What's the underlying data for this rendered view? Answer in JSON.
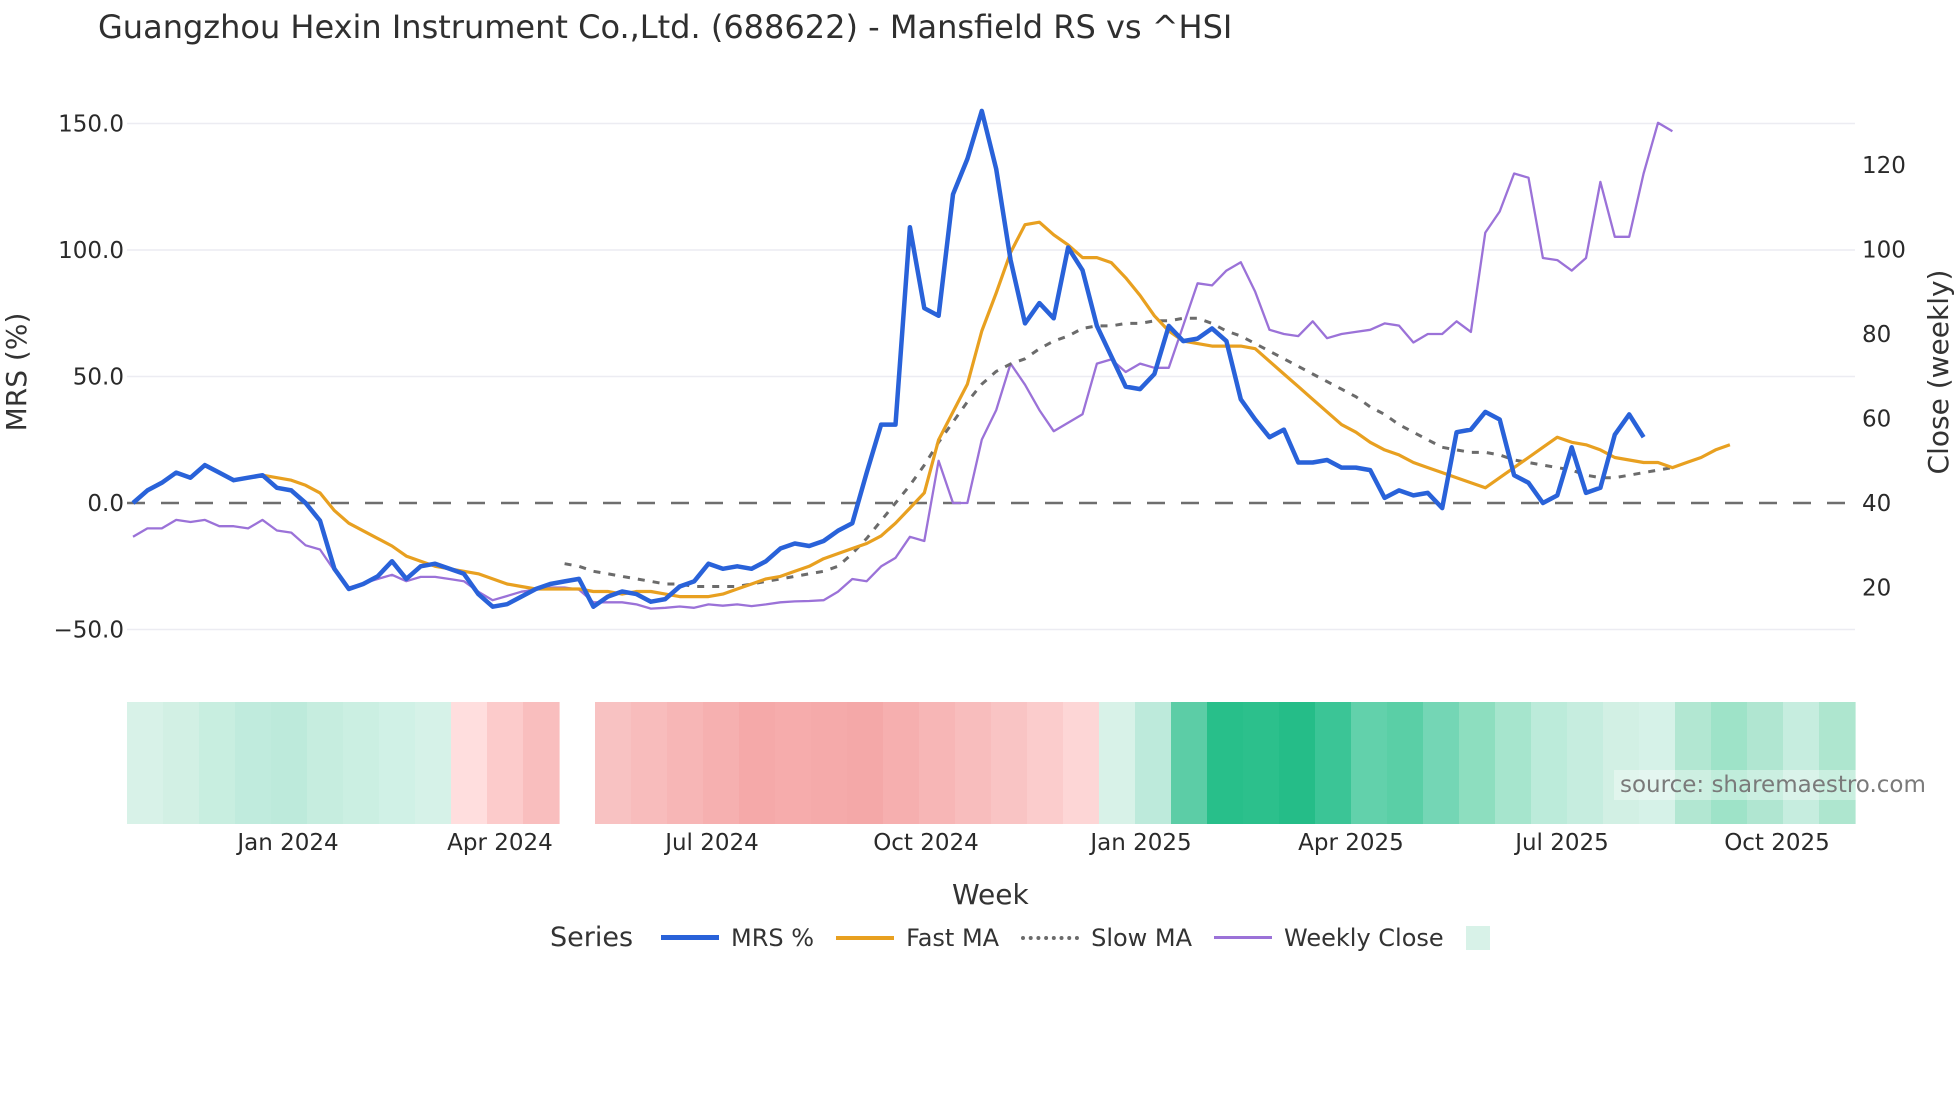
{
  "title": "Guangzhou Hexin Instrument Co.,Ltd. (688622) - Mansfield RS vs ^HSI",
  "source_note": "source: sharemaestro.com",
  "x_axis_title": "Week",
  "legend": {
    "title": "Series",
    "items": [
      {
        "label": "MRS %",
        "color": "#2962d9",
        "style": "solid"
      },
      {
        "label": "Fast MA",
        "color": "#e8a020",
        "style": "solid"
      },
      {
        "label": "Slow MA",
        "color": "#6b6b6b",
        "style": "dotted"
      },
      {
        "label": "Weekly Close",
        "color": "#9b72d8",
        "style": "solid"
      },
      {
        "label": "",
        "color": "#d8f2e8",
        "style": "square"
      }
    ]
  },
  "chart_data": {
    "type": "line",
    "title": "Guangzhou Hexin Instrument Co.,Ltd. (688622) - Mansfield RS vs ^HSI",
    "xlabel": "Week",
    "ylabel": "MRS (%)",
    "y2label": "Close (weekly)",
    "ylim": [
      -60,
      160
    ],
    "y2lim": [
      10,
      140
    ],
    "yticks": [
      "150.0",
      "100.0",
      "50.0",
      "0.0",
      "−50.0"
    ],
    "y2ticks": [
      "120",
      "100",
      "80",
      "60",
      "40",
      "20"
    ],
    "xticks": [
      "Jan 2024",
      "Apr 2024",
      "Jul 2024",
      "Oct 2024",
      "Jan 2025",
      "Apr 2025",
      "Jul 2025",
      "Oct 2025"
    ],
    "grid": true,
    "zero_line": "dashed",
    "legend_position": "bottom",
    "x_start_week": 0,
    "x_end_week": 119,
    "series": [
      {
        "name": "MRS %",
        "axis": "left",
        "start_index": 0,
        "values": [
          0,
          5,
          8,
          12,
          10,
          15,
          12,
          9,
          10,
          11,
          6,
          5,
          0,
          -7,
          -26,
          -34,
          -32,
          -29,
          -23,
          -30,
          -25,
          -24,
          -26,
          -28,
          -36,
          -41,
          -40,
          -37,
          -34,
          -32,
          -31,
          -30,
          -41,
          -37,
          -35,
          -36,
          -39,
          -38,
          -33,
          -31,
          -24,
          -26,
          -25,
          -26,
          -23,
          -18,
          -16,
          -17,
          -15,
          -11,
          -8,
          12,
          31,
          31,
          109,
          77,
          74,
          122,
          136,
          155,
          132,
          96,
          71,
          79,
          73,
          101,
          92,
          70,
          58,
          46,
          45,
          51,
          70,
          64,
          65,
          69,
          64,
          41,
          33,
          26,
          29,
          16,
          16,
          17,
          14,
          14,
          13,
          2,
          5,
          3,
          4,
          -2,
          28,
          29,
          36,
          33,
          11,
          8,
          0,
          3,
          22,
          4,
          6,
          27,
          35,
          26
        ],
        "color": "#2962d9"
      },
      {
        "name": "Fast MA",
        "axis": "left",
        "start_index": 9,
        "values": [
          11,
          10,
          9,
          7,
          4,
          -3,
          -8,
          -11,
          -14,
          -17,
          -21,
          -23,
          -25,
          -26,
          -27,
          -28,
          -30,
          -32,
          -33,
          -34,
          -34,
          -34,
          -34,
          -35,
          -35,
          -36,
          -35,
          -35,
          -36,
          -37,
          -37,
          -37,
          -36,
          -34,
          -32,
          -30,
          -29,
          -27,
          -25,
          -22,
          -20,
          -18,
          -16,
          -13,
          -8,
          -2,
          4,
          25,
          36,
          47,
          68,
          83,
          99,
          110,
          111,
          106,
          102,
          97,
          97,
          95,
          89,
          82,
          74,
          68,
          64,
          63,
          62,
          62,
          62,
          61,
          56,
          51,
          46,
          41,
          36,
          31,
          28,
          24,
          21,
          19,
          16,
          14,
          12,
          10,
          8,
          6,
          10,
          14,
          18,
          22,
          26,
          24,
          23,
          21,
          18,
          17,
          16,
          16,
          14,
          16,
          18,
          21,
          23
        ],
        "color": "#e8a020"
      },
      {
        "name": "Slow MA",
        "axis": "left",
        "start_index": 30,
        "values": [
          -24,
          -25,
          -27,
          -28,
          -29,
          -30,
          -31,
          -32,
          -32,
          -33,
          -33,
          -33,
          -33,
          -32,
          -31,
          -30,
          -29,
          -28,
          -27,
          -25,
          -20,
          -14,
          -7,
          0,
          7,
          15,
          24,
          32,
          40,
          47,
          52,
          55,
          57,
          61,
          64,
          66,
          69,
          70,
          70,
          71,
          71,
          72,
          72,
          73,
          73,
          71,
          68,
          66,
          63,
          60,
          57,
          54,
          51,
          48,
          45,
          42,
          38,
          35,
          31,
          28,
          25,
          22,
          21,
          20,
          20,
          19,
          17,
          16,
          15,
          14,
          13,
          11,
          10,
          10,
          11,
          12,
          13,
          14
        ],
        "color": "#6b6b6b"
      },
      {
        "name": "Weekly Close",
        "axis": "right",
        "start_index": 0,
        "values": [
          32,
          34,
          34,
          36,
          35.5,
          36,
          34.5,
          34.5,
          34,
          36,
          33.5,
          33,
          30,
          29,
          24,
          20,
          21,
          22,
          23,
          21.5,
          22.5,
          22.5,
          22,
          21.5,
          19,
          17,
          18,
          19,
          19.5,
          20,
          20,
          19.5,
          16.5,
          16.5,
          16.5,
          16,
          15,
          15.2,
          15.5,
          15.2,
          16,
          15.7,
          16,
          15.6,
          16,
          16.5,
          16.7,
          16.8,
          17,
          19,
          22,
          21.5,
          25,
          27,
          32,
          31,
          50,
          40,
          40,
          55,
          62,
          73,
          68,
          62,
          57,
          59,
          61,
          73,
          74,
          71,
          73,
          72,
          72,
          82,
          92,
          91.5,
          95,
          97,
          90,
          81,
          80,
          79.5,
          83,
          79,
          80,
          80.5,
          81,
          82.5,
          82,
          78,
          80,
          80,
          83,
          80.5,
          104,
          109,
          118,
          117,
          98,
          97.5,
          95,
          98,
          116,
          103,
          103,
          118,
          130,
          128
        ],
        "color": "#9b72d8"
      }
    ],
    "heatmap_band": {
      "description": "Weekly MRS regime shading strip below main chart (green=positive, red=negative; intensity = magnitude)",
      "colors": [
        "#d8f2e8",
        "#d2f0e4",
        "#c8eee0",
        "#c0ebdd",
        "#bdeadb",
        "#c6eddf",
        "#cbefe2",
        "#d0f1e6",
        "#d6f2e8",
        "#ffdede",
        "#fccbcb",
        "#f9bebe",
        "#gap",
        "#f8c2c2",
        "#f8bcbc",
        "#f7b6b6",
        "#f6b0b0",
        "#f5a9a9",
        "#f6acac",
        "#f5aaaa",
        "#f4a8a8",
        "#f6afaf",
        "#f7b6b6",
        "#f8bdbd",
        "#f9c4c4",
        "#fbcccc",
        "#fdd6d6",
        "#d8f2e8",
        "#bdeadb",
        "#5ccda6",
        "#28bf8a",
        "#2cc08c",
        "#25bd88",
        "#3bc596",
        "#62d1ab",
        "#5acfa6",
        "#74d6b5",
        "#8ddebf",
        "#a6e5cd",
        "#bcebda",
        "#c6eddf",
        "#d2f0e4",
        "#d6f2e8",
        "#b2e7d2",
        "#9ee3c8",
        "#b0e6d1",
        "#c6eddf",
        "#aee6cf"
      ]
    }
  }
}
